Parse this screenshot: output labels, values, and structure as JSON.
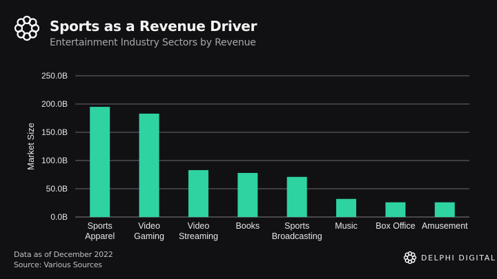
{
  "header": {
    "title": "Sports as a Revenue Driver",
    "subtitle": "Entertainment Industry Sectors by Revenue",
    "logo_icon": "delphi-knot-icon"
  },
  "footer": {
    "date_note": "Data as of December 2022",
    "source_note": "Source: Various Sources",
    "brand": "DELPHI DIGITAL"
  },
  "colors": {
    "background": "#111114",
    "bar": "#2ed3a1",
    "grid": "#6b6b6f"
  },
  "chart_data": {
    "type": "bar",
    "title": "Sports as a Revenue Driver",
    "subtitle": "Entertainment Industry Sectors by Revenue",
    "xlabel": "",
    "ylabel": "Market Size",
    "categories": [
      [
        "Sports",
        "Apparel"
      ],
      [
        "Video",
        "Gaming"
      ],
      [
        "Video",
        "Streaming"
      ],
      [
        "Books"
      ],
      [
        "Sports",
        "Broadcasting"
      ],
      [
        "Music"
      ],
      [
        "Box Office"
      ],
      [
        "Amusement"
      ]
    ],
    "values": [
      195,
      183,
      83,
      78,
      71,
      32,
      26,
      26
    ],
    "unit": "B",
    "ylim": [
      0,
      250
    ],
    "yticks": [
      0,
      50,
      100,
      150,
      200,
      250
    ],
    "ytick_labels": [
      "0.0B",
      "50.0B",
      "100.0B",
      "150.0B",
      "200.0B",
      "250.0B"
    ],
    "grid": true,
    "legend": "none"
  }
}
